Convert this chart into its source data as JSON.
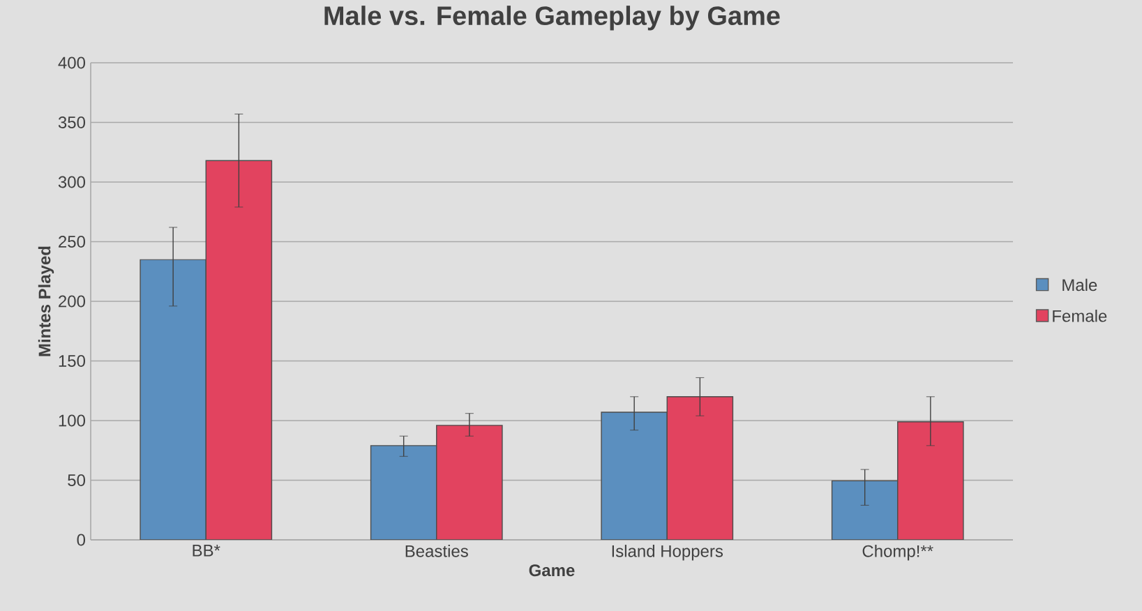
{
  "chart_data": {
    "type": "bar",
    "title": "Male vs. Female Gameplay by Game",
    "xlabel": "Game",
    "ylabel": "Mintes Played",
    "categories": [
      "BB*",
      "Beasties",
      "Island Hoppers",
      "Chomp!**"
    ],
    "series": [
      {
        "name": "Male",
        "color": "#5b8fbf",
        "values": [
          235,
          79,
          107,
          49.5
        ],
        "errors": [
          [
            196,
            262
          ],
          [
            70,
            87
          ],
          [
            92,
            120
          ],
          [
            29,
            59
          ]
        ]
      },
      {
        "name": "Female",
        "color": "#e2435f",
        "values": [
          318,
          96,
          120,
          99
        ],
        "errors": [
          [
            279,
            357
          ],
          [
            87,
            106
          ],
          [
            104,
            136
          ],
          [
            79,
            120
          ]
        ]
      }
    ],
    "ylim": [
      0,
      400
    ],
    "yticks": [
      0,
      50,
      100,
      150,
      200,
      250,
      300,
      350,
      400
    ],
    "grid": "y",
    "legend": "right"
  }
}
